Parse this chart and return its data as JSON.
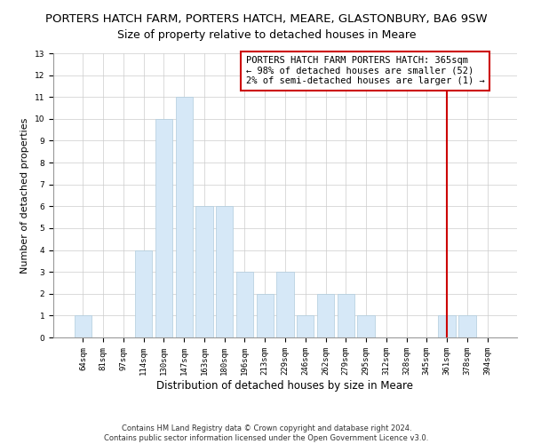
{
  "title": "PORTERS HATCH FARM, PORTERS HATCH, MEARE, GLASTONBURY, BA6 9SW",
  "subtitle": "Size of property relative to detached houses in Meare",
  "xlabel": "Distribution of detached houses by size in Meare",
  "ylabel": "Number of detached properties",
  "bar_labels": [
    "64sqm",
    "81sqm",
    "97sqm",
    "114sqm",
    "130sqm",
    "147sqm",
    "163sqm",
    "180sqm",
    "196sqm",
    "213sqm",
    "229sqm",
    "246sqm",
    "262sqm",
    "279sqm",
    "295sqm",
    "312sqm",
    "328sqm",
    "345sqm",
    "361sqm",
    "378sqm",
    "394sqm"
  ],
  "bar_heights": [
    1,
    0,
    0,
    4,
    10,
    11,
    6,
    6,
    3,
    2,
    3,
    1,
    2,
    2,
    1,
    0,
    0,
    0,
    1,
    1,
    0
  ],
  "bar_color": "#d6e8f7",
  "bar_edge_color": "#b0ccdd",
  "highlight_line_x_label": "361sqm",
  "highlight_line_color": "#cc0000",
  "ylim": [
    0,
    13
  ],
  "yticks": [
    0,
    1,
    2,
    3,
    4,
    5,
    6,
    7,
    8,
    9,
    10,
    11,
    12,
    13
  ],
  "legend_title": "PORTERS HATCH FARM PORTERS HATCH: 365sqm",
  "legend_line1": "← 98% of detached houses are smaller (52)",
  "legend_line2": "2% of semi-detached houses are larger (1) →",
  "legend_box_color": "#cc0000",
  "footer_line1": "Contains HM Land Registry data © Crown copyright and database right 2024.",
  "footer_line2": "Contains public sector information licensed under the Open Government Licence v3.0.",
  "title_fontsize": 9.5,
  "subtitle_fontsize": 9,
  "xlabel_fontsize": 8.5,
  "ylabel_fontsize": 8,
  "tick_fontsize": 6.5,
  "footer_fontsize": 6,
  "legend_fontsize": 7.5
}
